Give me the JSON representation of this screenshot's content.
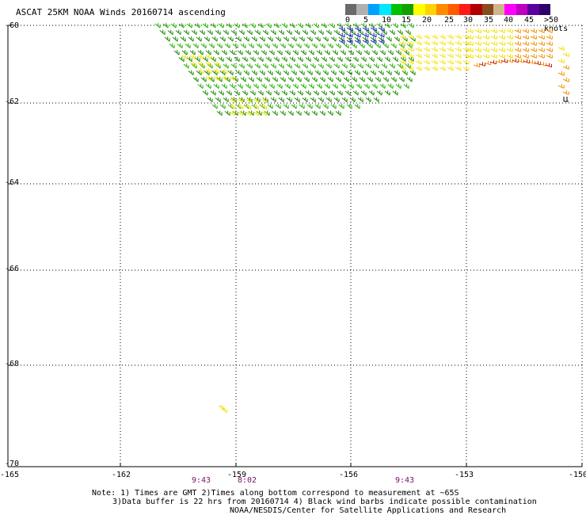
{
  "title": "ASCAT 25KM NOAA Winds 20160714 ascending",
  "legend": {
    "colors": [
      "#6a6a6a",
      "#b0b0b0",
      "#00a0ff",
      "#00e8ff",
      "#00c000",
      "#10a000",
      "#ffff00",
      "#ffd200",
      "#ff8a00",
      "#ff5a00",
      "#ff1818",
      "#b00000",
      "#8a4a20",
      "#d2b48c",
      "#ff00ff",
      "#c000c0",
      "#5a00a0",
      "#30006a"
    ],
    "labels": [
      "0",
      "5",
      "10",
      "15",
      "20",
      "25",
      "30",
      "35",
      "40",
      "45",
      ">50 knots"
    ]
  },
  "axes": {
    "y_labels": [
      "-60",
      "-62",
      "-64",
      "-66",
      "-68",
      "-70"
    ],
    "x_labels": [
      "-165",
      "-162",
      "-159",
      "-156",
      "-153",
      "-150"
    ]
  },
  "times": [
    "9:43",
    "8:02",
    "9:43"
  ],
  "notes": {
    "line1": "Note: 1) Times are GMT 2)Times along bottom correspond to measurement at ~65S",
    "line2": "3)Data buffer is 22 hrs from 20160714 4) Black wind barbs indicate possible contamination",
    "line3": "NOAA/NESDIS/Center for Satellite Applications and Research"
  },
  "wind_colors": {
    "green_dark": "#1a8a00",
    "green": "#22b000",
    "blue": "#1010c0",
    "yellow": "#f2e000",
    "orange": "#f09000",
    "red": "#c82000"
  }
}
